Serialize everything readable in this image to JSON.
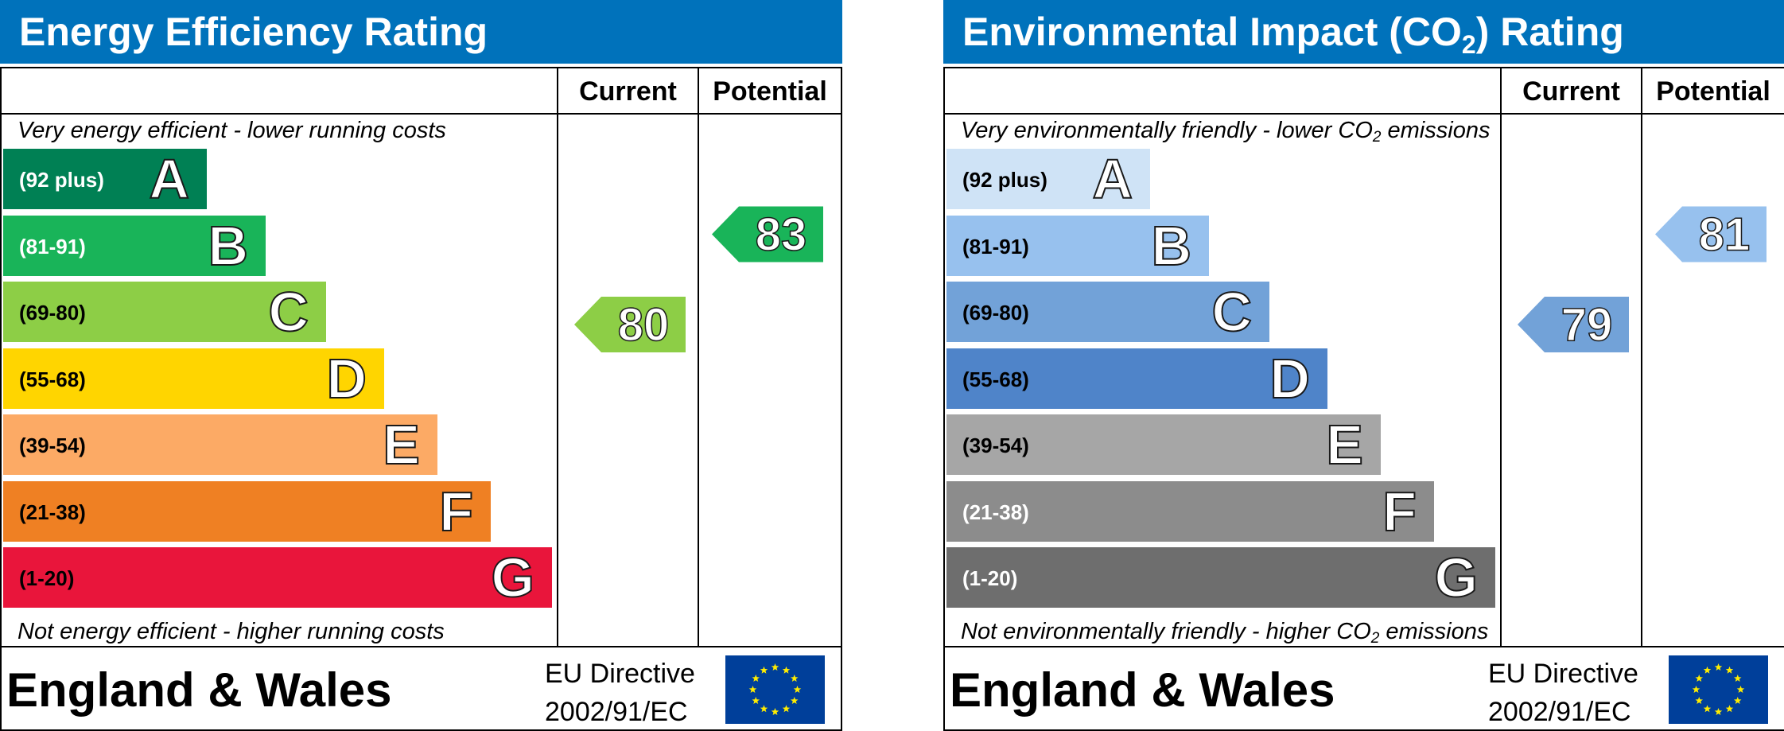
{
  "colors": {
    "header_blue": "#0072bb",
    "eu_blue": "#003f9a",
    "eu_star": "#ffed00"
  },
  "chart_data": [
    {
      "type": "bar",
      "title": "Energy Efficiency Rating",
      "columns": [
        "Current",
        "Potential"
      ],
      "top_caption": "Very energy efficient - lower running costs",
      "bottom_caption": "Not energy efficient - higher running costs",
      "bands": [
        {
          "letter": "A",
          "range": "(92 plus)",
          "color": "#008054",
          "text_color": "#ffffff"
        },
        {
          "letter": "B",
          "range": "(81-91)",
          "color": "#19b459",
          "text_color": "#ffffff"
        },
        {
          "letter": "C",
          "range": "(69-80)",
          "color": "#8dce46",
          "text_color": "#000000"
        },
        {
          "letter": "D",
          "range": "(55-68)",
          "color": "#ffd500",
          "text_color": "#000000"
        },
        {
          "letter": "E",
          "range": "(39-54)",
          "color": "#fcaa65",
          "text_color": "#000000"
        },
        {
          "letter": "F",
          "range": "(21-38)",
          "color": "#ef8023",
          "text_color": "#000000"
        },
        {
          "letter": "G",
          "range": "(1-20)",
          "color": "#e9153b",
          "text_color": "#000000"
        }
      ],
      "current": {
        "value": "80",
        "band": "C",
        "color": "#8dce46"
      },
      "potential": {
        "value": "83",
        "band": "B",
        "color": "#19b459"
      },
      "footer": {
        "country": "England & Wales",
        "directive_line1": "EU Directive",
        "directive_line2": "2002/91/EC"
      }
    },
    {
      "type": "bar",
      "title": "Environmental Impact (CO2) Rating",
      "columns": [
        "Current",
        "Potential"
      ],
      "top_caption": "Very environmentally friendly - lower CO2 emissions",
      "bottom_caption": "Not environmentally friendly - higher CO2 emissions",
      "bands": [
        {
          "letter": "A",
          "range": "(92 plus)",
          "color": "#cfe3f6",
          "text_color": "#000000"
        },
        {
          "letter": "B",
          "range": "(81-91)",
          "color": "#97c1ee",
          "text_color": "#000000"
        },
        {
          "letter": "C",
          "range": "(69-80)",
          "color": "#72a2d8",
          "text_color": "#000000"
        },
        {
          "letter": "D",
          "range": "(55-68)",
          "color": "#4f84c9",
          "text_color": "#000000"
        },
        {
          "letter": "E",
          "range": "(39-54)",
          "color": "#a6a6a6",
          "text_color": "#000000"
        },
        {
          "letter": "F",
          "range": "(21-38)",
          "color": "#8c8c8c",
          "text_color": "#ffffff"
        },
        {
          "letter": "G",
          "range": "(1-20)",
          "color": "#6e6e6e",
          "text_color": "#ffffff"
        }
      ],
      "current": {
        "value": "79",
        "band": "C",
        "color": "#72a2d8"
      },
      "potential": {
        "value": "81",
        "band": "B",
        "color": "#97c1ee"
      },
      "footer": {
        "country": "England & Wales",
        "directive_line1": "EU Directive",
        "directive_line2": "2002/91/EC"
      }
    }
  ]
}
